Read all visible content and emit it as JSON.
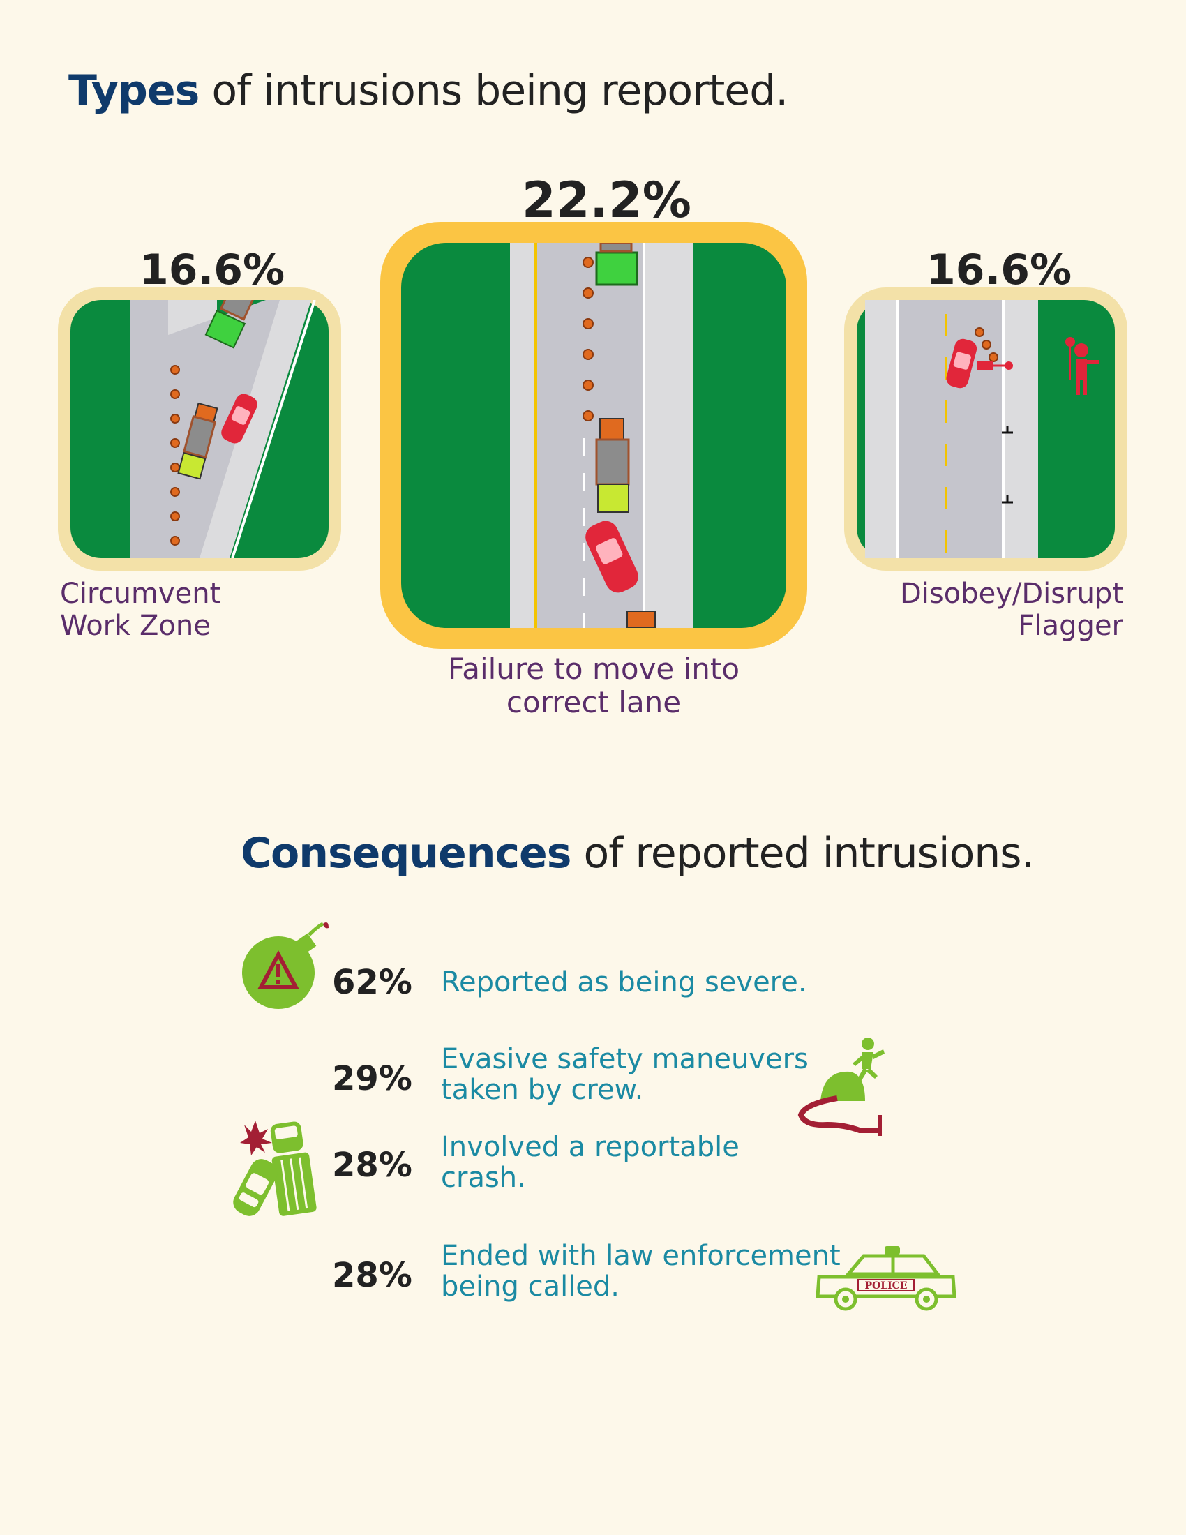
{
  "types_section": {
    "title_strong": "Types",
    "title_rest": " of intrusions being reported.",
    "items": [
      {
        "percent": "16.6%",
        "label_line1": "Circumvent",
        "label_line2": "Work Zone",
        "icon": "circumvent-work-zone-illustration"
      },
      {
        "percent": "22.2%",
        "label_line1": "Failure to move into",
        "label_line2": "correct lane",
        "icon": "lane-change-failure-illustration"
      },
      {
        "percent": "16.6%",
        "label_line1": "Disobey/Disrupt",
        "label_line2": "Flagger",
        "icon": "flagger-illustration"
      }
    ]
  },
  "consequences_section": {
    "title_strong": "Consequences",
    "title_rest": " of reported intrusions.",
    "items": [
      {
        "percent": "62%",
        "line1": "Reported as being severe.",
        "line2": "",
        "icon": "bomb-warning-icon"
      },
      {
        "percent": "29%",
        "line1": "Evasive safety maneuvers",
        "line2": "taken by crew.",
        "icon": "evasive-runner-icon"
      },
      {
        "percent": "28%",
        "line1": "Involved a reportable",
        "line2": "crash.",
        "icon": "crash-icon"
      },
      {
        "percent": "28%",
        "line1": "Ended with law enforcement",
        "line2": "being called.",
        "icon": "police-car-icon",
        "icon_text": "POLICE"
      }
    ]
  },
  "colors": {
    "heading_accent": "#0f3a6b",
    "caption": "#5a2d6a",
    "consequence_text": "#1b8aa3",
    "grass": "#0a8a3e",
    "tile_frame_small": "#f3e1a8",
    "tile_frame_large": "#fbc544",
    "icon_green": "#7dbf2e",
    "icon_red": "#a31f34"
  }
}
